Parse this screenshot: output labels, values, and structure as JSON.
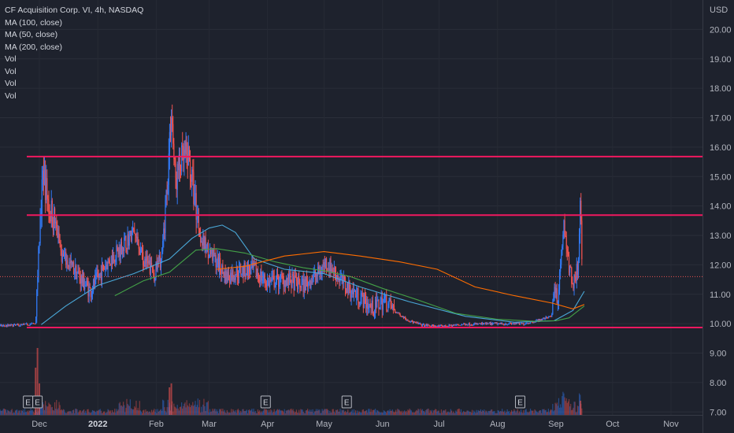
{
  "legend": {
    "title": "CF Acquisition Corp. VI, 4h, NASDAQ",
    "ma100": "MA (100, close)",
    "ma50": "MA (50, close)",
    "ma200": "MA (200, close)",
    "vol1": "Vol",
    "vol2": "Vol",
    "vol3": "Vol",
    "vol4": "Vol"
  },
  "colors": {
    "background": "#1e222d",
    "up": "#3179f5",
    "down": "#ef5350",
    "hline": "#f0185f",
    "ma100": "#4aa8d8",
    "ma50": "#43a047",
    "ma200": "#ff6d00",
    "text": "#b2b5be"
  },
  "chart_data": {
    "type": "candlestick",
    "y_unit": "USD",
    "ylim": [
      6.9,
      21.0
    ],
    "y_ticks": [
      "20.00",
      "19.00",
      "18.00",
      "17.00",
      "16.00",
      "15.00",
      "14.00",
      "13.00",
      "12.00",
      "11.00",
      "10.00",
      "9.00",
      "8.00",
      "7.00"
    ],
    "x_ticks": [
      {
        "label": "Dec",
        "date": "2021-12-01",
        "bold": false
      },
      {
        "label": "2022",
        "date": "2022-01-01",
        "bold": true
      },
      {
        "label": "Feb",
        "date": "2022-02-01",
        "bold": false
      },
      {
        "label": "Mar",
        "date": "2022-03-01",
        "bold": false
      },
      {
        "label": "Apr",
        "date": "2022-04-01",
        "bold": false
      },
      {
        "label": "May",
        "date": "2022-05-01",
        "bold": false
      },
      {
        "label": "Jun",
        "date": "2022-06-01",
        "bold": false
      },
      {
        "label": "Jul",
        "date": "2022-07-01",
        "bold": false
      },
      {
        "label": "Aug",
        "date": "2022-08-01",
        "bold": false
      },
      {
        "label": "Sep",
        "date": "2022-09-01",
        "bold": false
      },
      {
        "label": "Oct",
        "date": "2022-10-01",
        "bold": false
      },
      {
        "label": "Nov",
        "date": "2022-11-01",
        "bold": false
      }
    ],
    "horizontal_lines": [
      {
        "value": 15.68,
        "label": "15.68"
      },
      {
        "value": 13.69,
        "label": "13.69"
      },
      {
        "value": 9.87,
        "label": "9.87"
      }
    ],
    "current_price": {
      "value": 11.6,
      "label": "11.60"
    },
    "earnings_markers": [
      "2021-11-25",
      "2021-11-30",
      "2022-03-31",
      "2022-05-13",
      "2022-08-13"
    ],
    "earnings_label": "E",
    "price_path": [
      [
        "2021-10-12",
        9.85
      ],
      [
        "2021-11-20",
        9.95
      ],
      [
        "2021-11-29",
        10.0
      ],
      [
        "2021-12-01",
        13.0
      ],
      [
        "2021-12-03",
        15.2
      ],
      [
        "2021-12-06",
        14.0
      ],
      [
        "2021-12-09",
        13.5
      ],
      [
        "2021-12-13",
        12.3
      ],
      [
        "2021-12-20",
        11.8
      ],
      [
        "2021-12-28",
        11.1
      ],
      [
        "2022-01-05",
        12.0
      ],
      [
        "2022-01-12",
        12.5
      ],
      [
        "2022-01-20",
        13.1
      ],
      [
        "2022-01-25",
        12.2
      ],
      [
        "2022-01-31",
        11.7
      ],
      [
        "2022-02-04",
        12.3
      ],
      [
        "2022-02-07",
        15.0
      ],
      [
        "2022-02-09",
        17.3
      ],
      [
        "2022-02-11",
        14.8
      ],
      [
        "2022-02-14",
        15.5
      ],
      [
        "2022-02-18",
        15.7
      ],
      [
        "2022-02-22",
        14.0
      ],
      [
        "2022-02-25",
        12.8
      ],
      [
        "2022-03-03",
        12.3
      ],
      [
        "2022-03-10",
        11.6
      ],
      [
        "2022-03-18",
        11.8
      ],
      [
        "2022-03-25",
        11.8
      ],
      [
        "2022-04-01",
        11.4
      ],
      [
        "2022-04-10",
        11.5
      ],
      [
        "2022-04-20",
        11.3
      ],
      [
        "2022-04-28",
        11.7
      ],
      [
        "2022-05-02",
        12.1
      ],
      [
        "2022-05-06",
        11.8
      ],
      [
        "2022-05-12",
        11.3
      ],
      [
        "2022-05-20",
        10.9
      ],
      [
        "2022-05-27",
        10.5
      ],
      [
        "2022-06-02",
        10.8
      ],
      [
        "2022-06-08",
        10.4
      ],
      [
        "2022-06-15",
        10.1
      ],
      [
        "2022-06-22",
        9.95
      ],
      [
        "2022-07-01",
        9.9
      ],
      [
        "2022-07-15",
        9.98
      ],
      [
        "2022-08-01",
        10.0
      ],
      [
        "2022-08-15",
        10.0
      ],
      [
        "2022-08-25",
        10.15
      ],
      [
        "2022-08-30",
        10.3
      ],
      [
        "2022-08-31",
        11.4
      ],
      [
        "2022-09-02",
        10.8
      ],
      [
        "2022-09-05",
        13.5
      ],
      [
        "2022-09-08",
        11.9
      ],
      [
        "2022-09-10",
        11.4
      ],
      [
        "2022-09-13",
        12.0
      ],
      [
        "2022-09-14",
        14.2
      ],
      [
        "2022-09-15",
        11.6
      ]
    ],
    "series": [
      {
        "name": "MA (100, close)",
        "key": "ma100",
        "points": [
          [
            "2021-12-02",
            9.97
          ],
          [
            "2021-12-15",
            10.6
          ],
          [
            "2022-01-01",
            11.3
          ],
          [
            "2022-01-20",
            11.7
          ],
          [
            "2022-02-08",
            12.2
          ],
          [
            "2022-02-20",
            12.9
          ],
          [
            "2022-03-01",
            13.25
          ],
          [
            "2022-03-08",
            13.35
          ],
          [
            "2022-03-15",
            13.1
          ],
          [
            "2022-03-25",
            12.2
          ],
          [
            "2022-04-10",
            11.85
          ],
          [
            "2022-05-01",
            11.7
          ],
          [
            "2022-05-20",
            11.25
          ],
          [
            "2022-06-15",
            10.75
          ],
          [
            "2022-07-15",
            10.25
          ],
          [
            "2022-08-10",
            10.05
          ],
          [
            "2022-08-31",
            10.1
          ],
          [
            "2022-09-10",
            10.45
          ],
          [
            "2022-09-16",
            11.1
          ]
        ]
      },
      {
        "name": "MA (50, close)",
        "key": "ma50",
        "points": [
          [
            "2022-01-10",
            10.95
          ],
          [
            "2022-01-25",
            11.45
          ],
          [
            "2022-02-08",
            11.75
          ],
          [
            "2022-02-22",
            12.5
          ],
          [
            "2022-03-05",
            12.55
          ],
          [
            "2022-03-20",
            12.4
          ],
          [
            "2022-04-05",
            12.1
          ],
          [
            "2022-04-20",
            11.9
          ],
          [
            "2022-05-01",
            11.8
          ],
          [
            "2022-05-15",
            11.6
          ],
          [
            "2022-06-01",
            11.2
          ],
          [
            "2022-06-20",
            10.8
          ],
          [
            "2022-07-10",
            10.35
          ],
          [
            "2022-08-01",
            10.15
          ],
          [
            "2022-08-20",
            10.08
          ],
          [
            "2022-09-01",
            10.1
          ],
          [
            "2022-09-08",
            10.2
          ],
          [
            "2022-09-12",
            10.4
          ],
          [
            "2022-09-16",
            10.6
          ]
        ]
      },
      {
        "name": "MA (200, close)",
        "key": "ma200",
        "points": [
          [
            "2022-03-05",
            11.85
          ],
          [
            "2022-03-20",
            11.95
          ],
          [
            "2022-04-10",
            12.3
          ],
          [
            "2022-05-01",
            12.45
          ],
          [
            "2022-05-20",
            12.3
          ],
          [
            "2022-06-10",
            12.1
          ],
          [
            "2022-06-30",
            11.85
          ],
          [
            "2022-07-20",
            11.25
          ],
          [
            "2022-08-10",
            10.95
          ],
          [
            "2022-08-30",
            10.7
          ],
          [
            "2022-09-10",
            10.5
          ],
          [
            "2022-09-16",
            10.65
          ]
        ]
      }
    ]
  }
}
